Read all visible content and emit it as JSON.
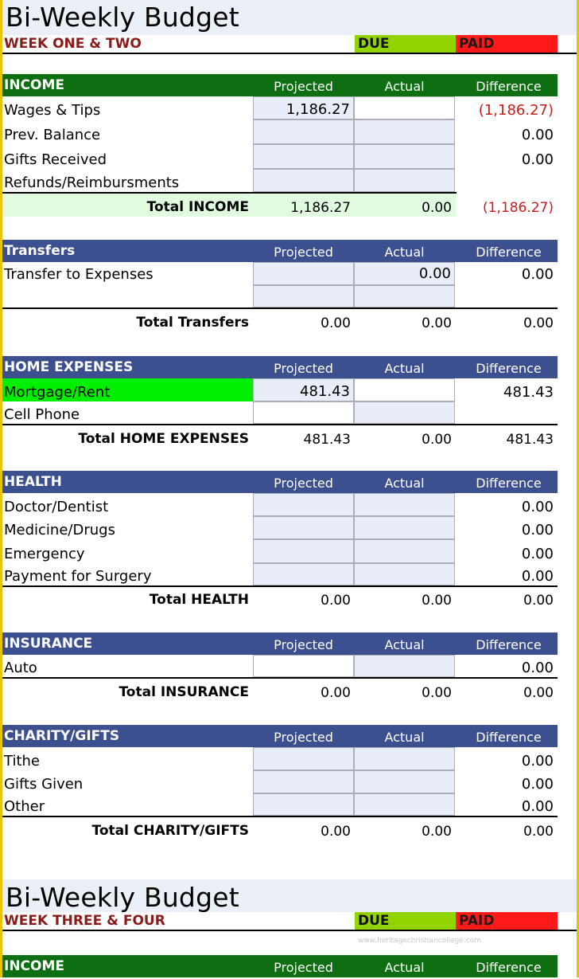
{
  "budget1": {
    "title": "Bi-Weekly Budget",
    "week": "WEEK ONE & TWO",
    "due": "DUE",
    "paid": "PAID"
  },
  "columns": {
    "projected": "Projected",
    "actual": "Actual",
    "difference": "Difference"
  },
  "income": {
    "header": "INCOME",
    "rows": [
      {
        "label": "Wages & Tips",
        "projected": "1,186.27",
        "actual": "",
        "difference": "(1,186.27)"
      },
      {
        "label": "Prev. Balance",
        "projected": "",
        "actual": "",
        "difference": "0.00"
      },
      {
        "label": "Gifts Received",
        "projected": "",
        "actual": "",
        "difference": "0.00"
      },
      {
        "label": "Refunds/Reimbursments",
        "projected": "",
        "actual": "",
        "difference": ""
      }
    ],
    "total": {
      "label": "Total INCOME",
      "projected": "1,186.27",
      "actual": "0.00",
      "difference": "(1,186.27)"
    }
  },
  "transfers": {
    "header": "Transfers",
    "rows": [
      {
        "label": "Transfer to Expenses",
        "projected": "",
        "actual": "0.00",
        "difference": "0.00"
      },
      {
        "label": "",
        "projected": "",
        "actual": "",
        "difference": ""
      }
    ],
    "total": {
      "label": "Total Transfers",
      "projected": "0.00",
      "actual": "0.00",
      "difference": "0.00"
    }
  },
  "home": {
    "header": "HOME EXPENSES",
    "rows": [
      {
        "label": "Mortgage/Rent",
        "projected": "481.43",
        "actual": "",
        "difference": "481.43"
      },
      {
        "label": "Cell Phone",
        "projected": "",
        "actual": "",
        "difference": ""
      }
    ],
    "total": {
      "label": "Total HOME EXPENSES",
      "projected": "481.43",
      "actual": "0.00",
      "difference": "481.43"
    }
  },
  "health": {
    "header": "HEALTH",
    "rows": [
      {
        "label": "Doctor/Dentist",
        "projected": "",
        "actual": "",
        "difference": "0.00"
      },
      {
        "label": "Medicine/Drugs",
        "projected": "",
        "actual": "",
        "difference": "0.00"
      },
      {
        "label": "Emergency",
        "projected": "",
        "actual": "",
        "difference": "0.00"
      },
      {
        "label": "Payment for Surgery",
        "projected": "",
        "actual": "",
        "difference": "0.00"
      }
    ],
    "total": {
      "label": "Total HEALTH",
      "projected": "0.00",
      "actual": "0.00",
      "difference": "0.00"
    }
  },
  "insurance": {
    "header": "INSURANCE",
    "rows": [
      {
        "label": "Auto",
        "projected": "",
        "actual": "",
        "difference": "0.00"
      }
    ],
    "total": {
      "label": "Total INSURANCE",
      "projected": "0.00",
      "actual": "0.00",
      "difference": "0.00"
    }
  },
  "charity": {
    "header": "CHARITY/GIFTS",
    "rows": [
      {
        "label": "Tithe",
        "projected": "",
        "actual": "",
        "difference": "0.00"
      },
      {
        "label": "Gifts Given",
        "projected": "",
        "actual": "",
        "difference": "0.00"
      },
      {
        "label": "Other",
        "projected": "",
        "actual": "",
        "difference": "0.00"
      }
    ],
    "total": {
      "label": "Total CHARITY/GIFTS",
      "projected": "0.00",
      "actual": "0.00",
      "difference": "0.00"
    }
  },
  "budget2": {
    "title": "Bi-Weekly Budget",
    "week": "WEEK THREE & FOUR",
    "due": "DUE",
    "paid": "PAID",
    "watermark": "www.heritagechristiancollege.com",
    "income_header": "INCOME"
  },
  "colors": {
    "income_header": "#0e6e12",
    "section_header": "#3c4f8e",
    "due": "#92d400",
    "paid": "#ff1a1a",
    "highlight_green": "#00ee00",
    "total_income_bg": "#e0fbe0",
    "negative": "#c81c1c",
    "input_cell": "#e9edf7"
  }
}
